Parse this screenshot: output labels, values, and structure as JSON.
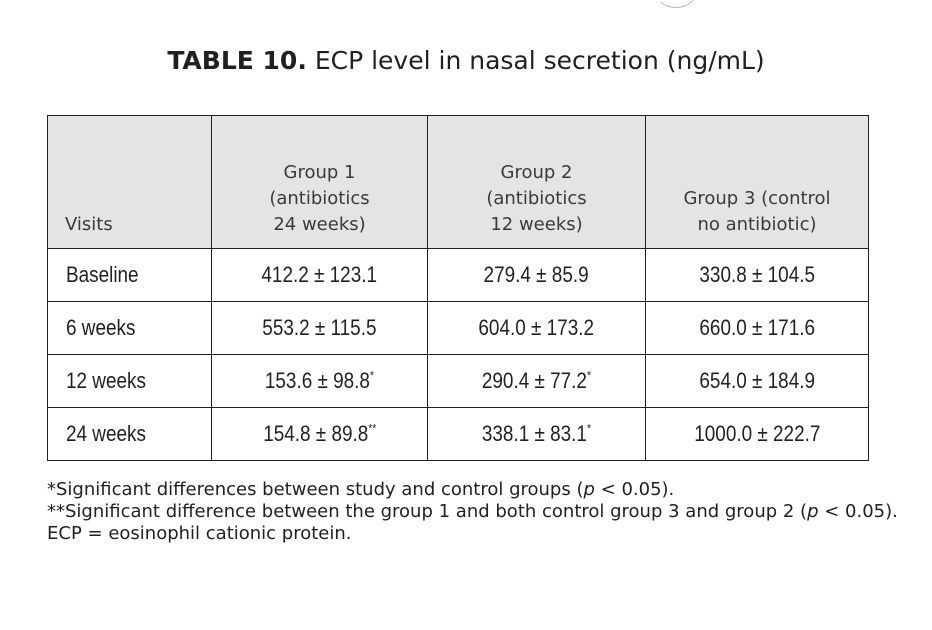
{
  "table": {
    "number_label": "TABLE 10.",
    "caption": "ECP level in nasal secretion (ng/mL)",
    "header": {
      "visits": "Visits",
      "group1": [
        "Group 1",
        "(antibiotics",
        "24 weeks)"
      ],
      "group2": [
        "Group 2",
        "(antibiotics",
        "12 weeks)"
      ],
      "group3": [
        "Group 3 (control",
        "no antibiotic)"
      ]
    },
    "rows": [
      {
        "visit": "Baseline",
        "g1": "412.2 ± 123.1",
        "g1_mark": "",
        "g2": "279.4 ± 85.9",
        "g2_mark": "",
        "g3": "330.8 ± 104.5"
      },
      {
        "visit": "6 weeks",
        "g1": "553.2 ± 115.5",
        "g1_mark": "",
        "g2": "604.0 ± 173.2",
        "g2_mark": "",
        "g3": "660.0 ± 171.6"
      },
      {
        "visit": "12 weeks",
        "g1": "153.6 ± 98.8",
        "g1_mark": "*",
        "g2": "290.4 ± 77.2",
        "g2_mark": "*",
        "g3": "654.0 ± 184.9"
      },
      {
        "visit": "24 weeks",
        "g1": "154.8 ± 89.8",
        "g1_mark": "**",
        "g2": "338.1 ± 83.1",
        "g2_mark": "*",
        "g3": "1000.0 ± 222.7"
      }
    ]
  },
  "footnotes": {
    "note1_before": "*Significant differences between study and control groups (",
    "note1_p": "p",
    "note1_after": " < 0.05).",
    "note2_before": "**Significant difference between the group 1 and both control group 3 and group 2 (",
    "note2_p": "p",
    "note2_after": " < 0.05).",
    "note3": "ECP = eosinophil cationic protein."
  }
}
